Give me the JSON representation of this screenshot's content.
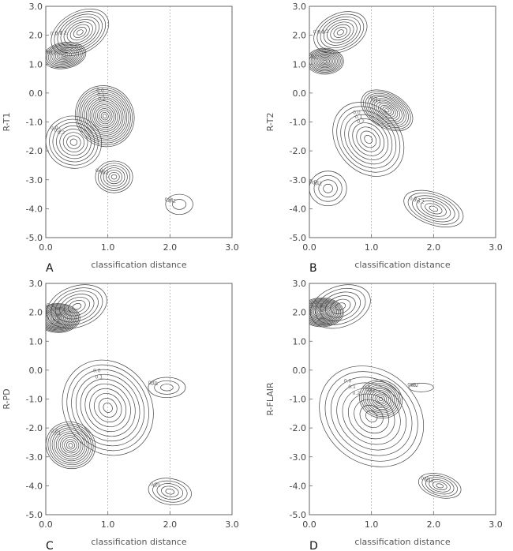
{
  "chart_data": [
    {
      "type": "contour",
      "panel_label": "A",
      "xlabel": "classification distance",
      "ylabel": "R-T1",
      "xlim": [
        0.0,
        3.0
      ],
      "ylim": [
        -5.0,
        3.0
      ],
      "x_ticks": [
        "0.0",
        "1.0",
        "2.0",
        "3.0"
      ],
      "y_ticks": [
        "3.0",
        "2.0",
        "1.0",
        "0.0",
        "-1.0",
        "-2.0",
        "-3.0",
        "-4.0",
        "-5.0"
      ],
      "grid": "dotted at x=1.0, x=2.0",
      "contour_levels": [
        "0.0",
        "0.1",
        "0.2"
      ],
      "peaks": [
        {
          "x": 0.3,
          "y": 1.3,
          "sx": 0.35,
          "sy": 0.45,
          "rot": -10,
          "rings": 12
        },
        {
          "x": 0.55,
          "y": 2.1,
          "sx": 0.5,
          "sy": 0.7,
          "rot": -30,
          "rings": 9
        },
        {
          "x": 0.95,
          "y": -0.8,
          "sx": 0.5,
          "sy": 1.0,
          "rot": 60,
          "rings": 16
        },
        {
          "x": 0.45,
          "y": -1.7,
          "sx": 0.45,
          "sy": 0.9,
          "rot": 15,
          "rings": 8
        },
        {
          "x": 1.1,
          "y": -2.9,
          "sx": 0.3,
          "sy": 0.55,
          "rot": 0,
          "rings": 7
        },
        {
          "x": 2.15,
          "y": -3.85,
          "sx": 0.22,
          "sy": 0.35,
          "rot": 0,
          "rings": 2
        }
      ]
    },
    {
      "type": "contour",
      "panel_label": "B",
      "xlabel": "classification distance",
      "ylabel": "R-T2",
      "xlim": [
        0.0,
        3.0
      ],
      "ylim": [
        -5.0,
        3.0
      ],
      "x_ticks": [
        "0.0",
        "1.0",
        "2.0",
        "3.0"
      ],
      "y_ticks": [
        "3.0",
        "2.0",
        "1.0",
        "0.0",
        "-1.0",
        "-2.0",
        "-3.0",
        "-4.0",
        "-5.0"
      ],
      "grid": "dotted at x=1.0, x=2.0",
      "contour_levels": [
        "0.0",
        "0.1",
        "0.2"
      ],
      "peaks": [
        {
          "x": 0.25,
          "y": 1.1,
          "sx": 0.3,
          "sy": 0.45,
          "rot": 0,
          "rings": 12
        },
        {
          "x": 0.5,
          "y": 2.1,
          "sx": 0.45,
          "sy": 0.65,
          "rot": -25,
          "rings": 8
        },
        {
          "x": 1.25,
          "y": -0.6,
          "sx": 0.45,
          "sy": 0.6,
          "rot": 30,
          "rings": 12
        },
        {
          "x": 0.95,
          "y": -1.6,
          "sx": 0.65,
          "sy": 1.1,
          "rot": 50,
          "rings": 9
        },
        {
          "x": 2.0,
          "y": -4.0,
          "sx": 0.5,
          "sy": 0.55,
          "rot": 20,
          "rings": 7
        },
        {
          "x": 0.3,
          "y": -3.3,
          "sx": 0.3,
          "sy": 0.6,
          "rot": 0,
          "rings": 4
        }
      ]
    },
    {
      "type": "contour",
      "panel_label": "C",
      "xlabel": "classification distance",
      "ylabel": "R-PD",
      "xlim": [
        0.0,
        3.0
      ],
      "ylim": [
        -5.0,
        3.0
      ],
      "x_ticks": [
        "0.0",
        "1.0",
        "2.0",
        "3.0"
      ],
      "y_ticks": [
        "3.0",
        "2.0",
        "1.0",
        "0.0",
        "-1.0",
        "-2.0",
        "-3.0",
        "-4.0",
        "-5.0"
      ],
      "grid": "dotted at x=1.0, x=2.0",
      "contour_levels": [
        "0.0",
        "0.1"
      ],
      "peaks": [
        {
          "x": 0.2,
          "y": 1.8,
          "sx": 0.35,
          "sy": 0.5,
          "rot": 0,
          "rings": 16
        },
        {
          "x": 0.5,
          "y": 2.2,
          "sx": 0.5,
          "sy": 0.7,
          "rot": -20,
          "rings": 7
        },
        {
          "x": 0.4,
          "y": -2.6,
          "sx": 0.4,
          "sy": 0.8,
          "rot": 20,
          "rings": 12
        },
        {
          "x": 1.0,
          "y": -1.3,
          "sx": 0.8,
          "sy": 1.5,
          "rot": 55,
          "rings": 10
        },
        {
          "x": 1.95,
          "y": -0.6,
          "sx": 0.3,
          "sy": 0.35,
          "rot": 0,
          "rings": 3
        },
        {
          "x": 2.0,
          "y": -4.2,
          "sx": 0.35,
          "sy": 0.45,
          "rot": 10,
          "rings": 5
        }
      ]
    },
    {
      "type": "contour",
      "panel_label": "D",
      "xlabel": "classification distance",
      "ylabel": "R-FLAIR",
      "xlim": [
        0.0,
        3.0
      ],
      "ylim": [
        -5.0,
        3.0
      ],
      "x_ticks": [
        "0.0",
        "1.0",
        "2.0",
        "3.0"
      ],
      "y_ticks": [
        "3.0",
        "2.0",
        "1.0",
        "0.0",
        "-1.0",
        "-2.0",
        "-3.0",
        "-4.0",
        "-5.0"
      ],
      "grid": "dotted at x=1.0, x=2.0",
      "contour_levels": [
        "0.0",
        "0.1",
        "0.2"
      ],
      "peaks": [
        {
          "x": 0.2,
          "y": 2.0,
          "sx": 0.35,
          "sy": 0.5,
          "rot": 0,
          "rings": 16
        },
        {
          "x": 0.5,
          "y": 2.2,
          "sx": 0.5,
          "sy": 0.7,
          "rot": -20,
          "rings": 6
        },
        {
          "x": 1.15,
          "y": -1.0,
          "sx": 0.35,
          "sy": 0.65,
          "rot": 20,
          "rings": 11
        },
        {
          "x": 1.0,
          "y": -1.6,
          "sx": 0.9,
          "sy": 1.6,
          "rot": 40,
          "rings": 9
        },
        {
          "x": 2.1,
          "y": -4.0,
          "sx": 0.35,
          "sy": 0.4,
          "rot": 15,
          "rings": 6
        },
        {
          "x": 1.8,
          "y": -0.6,
          "sx": 0.2,
          "sy": 0.15,
          "rot": 0,
          "rings": 1
        }
      ]
    }
  ]
}
